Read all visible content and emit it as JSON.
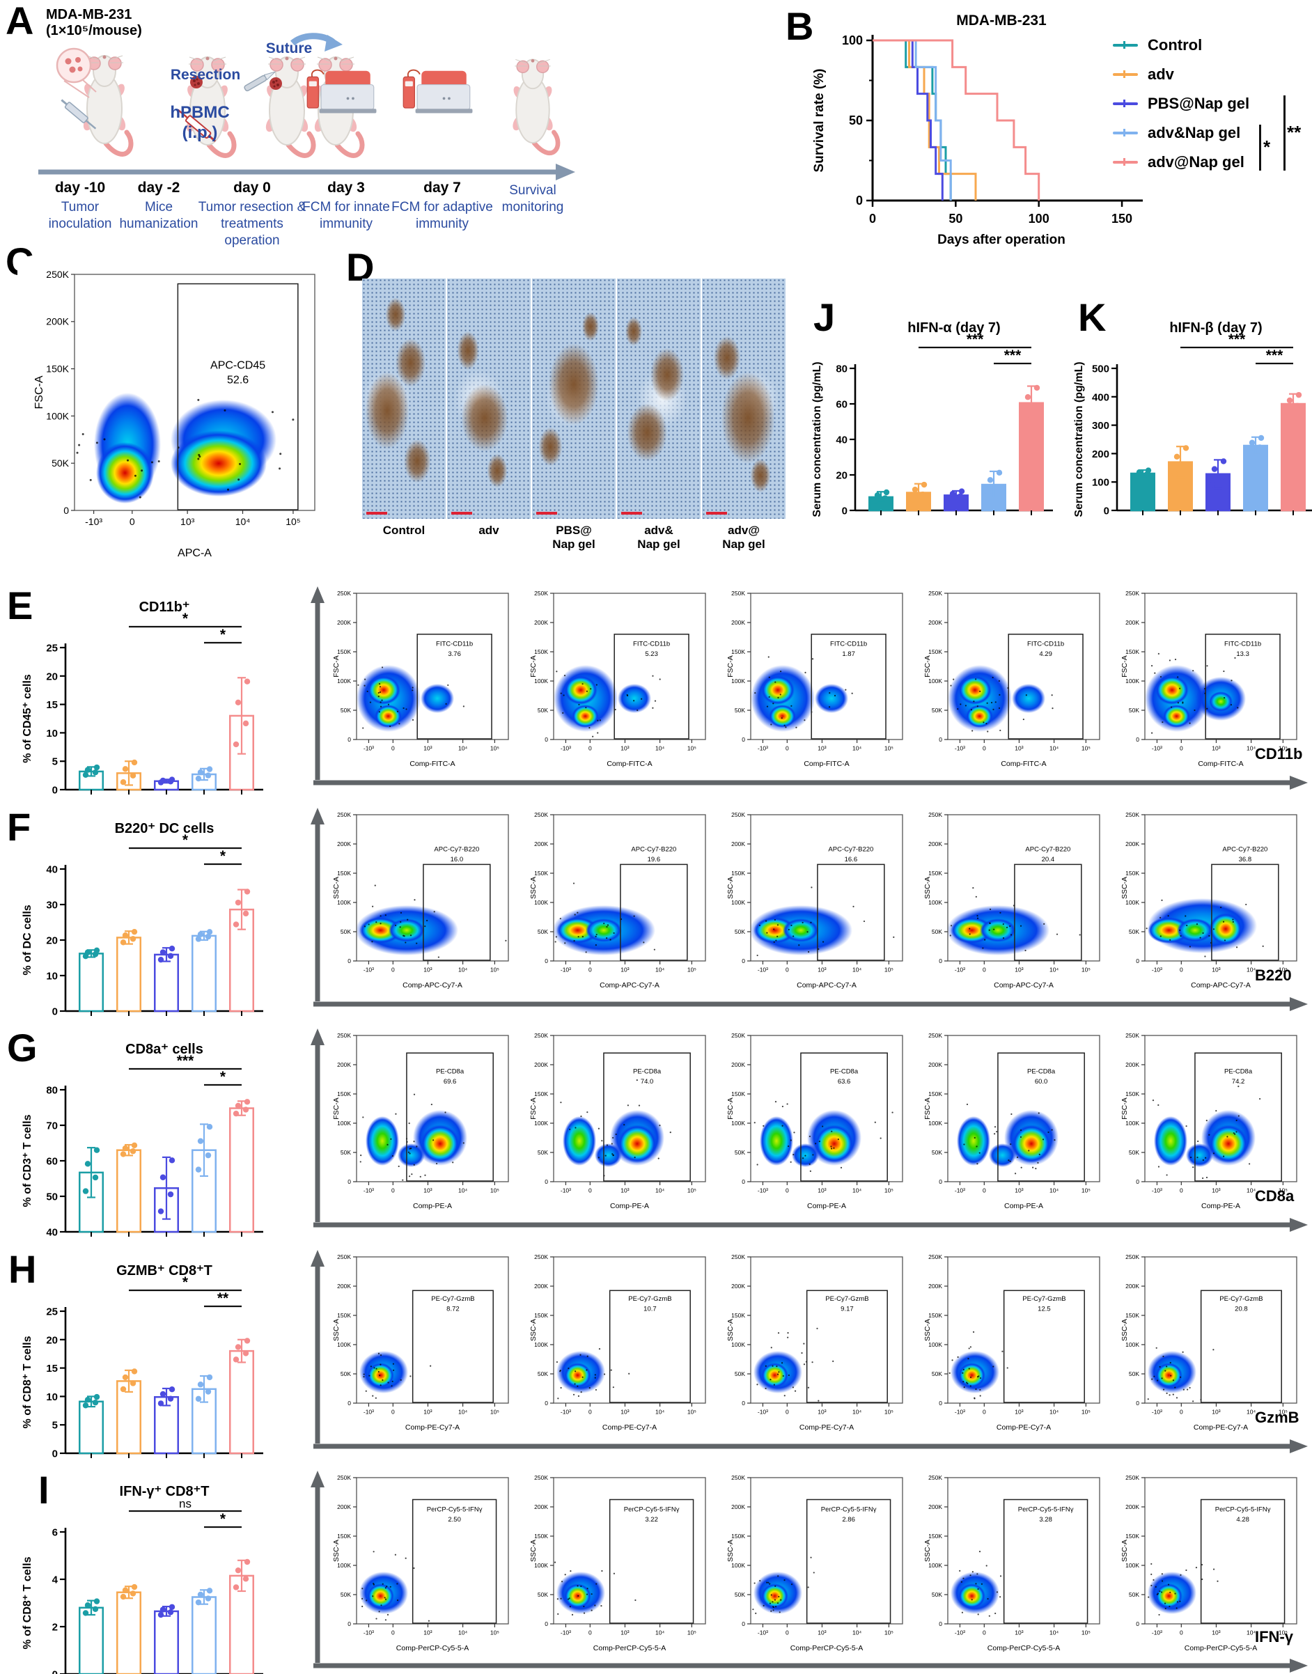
{
  "groups": [
    "Control",
    "adv",
    "PBS@Nap gel",
    "adv&Nap gel",
    "adv@Nap gel"
  ],
  "group_colors": [
    "#1B9EA6",
    "#F7A84F",
    "#4B4BE0",
    "#7FB2EF",
    "#F48C8C"
  ],
  "panel_letters": {
    "A": "A",
    "B": "B",
    "C": "C",
    "D": "D",
    "E": "E",
    "F": "F",
    "G": "G",
    "H": "H",
    "I": "I",
    "J": "J",
    "K": "K"
  },
  "panelA": {
    "cell_line": "MDA-MB-231",
    "dose": "(1×10⁵/mouse)",
    "resection": "Resection",
    "suture": "Suture",
    "hpbmc": "hPBMC\n(i.p.)",
    "timeline": [
      {
        "day": "day -10",
        "desc": "Tumor\ninoculation"
      },
      {
        "day": "day -2",
        "desc": "Mice\nhumanization"
      },
      {
        "day": "day 0",
        "desc": "Tumor resection &\ntreatments operation"
      },
      {
        "day": "day 3",
        "desc": "FCM for innate\nimmunity"
      },
      {
        "day": "day 7",
        "desc": "FCM for adaptive\nimmunity"
      },
      {
        "day": "",
        "desc": "Survival\nmonitoring"
      }
    ]
  },
  "panelB": {
    "sig": [
      {
        "text": "*",
        "from_row": 3,
        "to_row": 4
      },
      {
        "text": "**",
        "from_row": 2,
        "to_row": 4
      }
    ]
  },
  "panelC": {
    "ylabel": "FSC-A",
    "xlabel": "APC-A",
    "gate_name": "APC-CD45",
    "gate_value": "52.6"
  },
  "panelD": {
    "labels": [
      "Control",
      "adv",
      "PBS@\nNap gel",
      "adv&\nNap gel",
      "adv@\nNap gel"
    ]
  },
  "fcm": {
    "yticks": [
      "0",
      "50K",
      "100K",
      "150K",
      "200K",
      "250K"
    ],
    "xticks": [
      "-10³",
      "0",
      "10³",
      "10⁴",
      "10⁵"
    ],
    "rows": [
      {
        "id": "E",
        "ylabel": "FSC-A",
        "xlabel": "Comp-FITC-A",
        "gate_name": "FITC-CD11b",
        "gate_values": [
          "3.76",
          "5.23",
          "1.87",
          "4.29",
          "13.3"
        ],
        "marker": "CD11b",
        "blob": "cd11b"
      },
      {
        "id": "F",
        "ylabel": "SSC-A",
        "xlabel": "Comp-APC-Cy7-A",
        "gate_name": "APC-Cy7-B220",
        "gate_values": [
          "16.0",
          "19.6",
          "16.6",
          "20.4",
          "36.8"
        ],
        "marker": "B220",
        "blob": "band"
      },
      {
        "id": "G",
        "ylabel": "FSC-A",
        "xlabel": "Comp-PE-A",
        "gate_name": "PE-CD8a",
        "gate_values": [
          "69.6",
          "74.0",
          "63.6",
          "60.0",
          "74.2"
        ],
        "marker": "CD8a",
        "blob": "two"
      },
      {
        "id": "H",
        "ylabel": "SSC-A",
        "xlabel": "Comp-PE-Cy7-A",
        "gate_name": "PE-Cy7-GzmB",
        "gate_values": [
          "8.72",
          "10.7",
          "9.17",
          "12.5",
          "20.8"
        ],
        "marker": "GzmB",
        "blob": "single"
      },
      {
        "id": "I",
        "ylabel": "SSC-A",
        "xlabel": "Comp-PerCP-Cy5-5-A",
        "gate_name": "PerCP-Cy5-5-IFNγ",
        "gate_values": [
          "2.50",
          "3.22",
          "2.86",
          "3.28",
          "4.28"
        ],
        "marker": "IFN-γ",
        "blob": "single"
      }
    ]
  },
  "chart_data": [
    {
      "id": "B",
      "type": "line",
      "title": "MDA-MB-231",
      "xlabel": "Days after operation",
      "ylabel": "Survival rate (%)",
      "xlim": [
        0,
        155
      ],
      "ylim": [
        0,
        100
      ],
      "xticks": [
        0,
        50,
        100,
        150
      ],
      "yticks": [
        0,
        50,
        100
      ],
      "legend_position": "right",
      "series": [
        {
          "name": "Control",
          "color": "#1B9EA6",
          "points": [
            [
              0,
              100
            ],
            [
              20,
              100
            ],
            [
              20,
              83.3
            ],
            [
              36,
              83.3
            ],
            [
              36,
              66.7
            ],
            [
              38,
              66.7
            ],
            [
              38,
              50
            ],
            [
              41,
              50
            ],
            [
              41,
              33.3
            ],
            [
              44,
              33.3
            ],
            [
              44,
              16.7
            ],
            [
              47,
              16.7
            ],
            [
              47,
              0
            ]
          ]
        },
        {
          "name": "adv",
          "color": "#F7A84F",
          "points": [
            [
              0,
              100
            ],
            [
              22,
              100
            ],
            [
              22,
              83.3
            ],
            [
              31,
              83.3
            ],
            [
              31,
              66.7
            ],
            [
              34,
              66.7
            ],
            [
              34,
              33.3
            ],
            [
              40,
              33.3
            ],
            [
              40,
              16.7
            ],
            [
              62,
              16.7
            ],
            [
              62,
              0
            ]
          ]
        },
        {
          "name": "PBS@Nap gel",
          "color": "#4B4BE0",
          "points": [
            [
              0,
              100
            ],
            [
              24,
              100
            ],
            [
              24,
              83.3
            ],
            [
              27,
              83.3
            ],
            [
              27,
              66.7
            ],
            [
              33,
              66.7
            ],
            [
              33,
              50
            ],
            [
              35,
              50
            ],
            [
              35,
              33.3
            ],
            [
              38,
              33.3
            ],
            [
              38,
              16.7
            ],
            [
              42,
              16.7
            ],
            [
              42,
              0
            ]
          ]
        },
        {
          "name": "adv&Nap gel",
          "color": "#7FB2EF",
          "points": [
            [
              0,
              100
            ],
            [
              26,
              100
            ],
            [
              26,
              83.3
            ],
            [
              38,
              83.3
            ],
            [
              38,
              50
            ],
            [
              41,
              50
            ],
            [
              41,
              25
            ],
            [
              47,
              25
            ],
            [
              47,
              0
            ]
          ]
        },
        {
          "name": "adv@Nap gel",
          "color": "#F48C8C",
          "points": [
            [
              0,
              100
            ],
            [
              48,
              100
            ],
            [
              48,
              83.3
            ],
            [
              56,
              83.3
            ],
            [
              56,
              66.7
            ],
            [
              75,
              66.7
            ],
            [
              75,
              50
            ],
            [
              85,
              50
            ],
            [
              85,
              33.3
            ],
            [
              92,
              33.3
            ],
            [
              92,
              16.7
            ],
            [
              100,
              16.7
            ],
            [
              100,
              0
            ]
          ]
        }
      ]
    },
    {
      "id": "E",
      "type": "bar",
      "title": "CD11b⁺",
      "ylabel": "% of CD45⁺ cells",
      "categories": [
        "Control",
        "adv",
        "PBS@Nap gel",
        "adv&Nap gel",
        "adv@Nap gel"
      ],
      "values": [
        3.2,
        2.9,
        1.5,
        2.7,
        13.0
      ],
      "errors": [
        0.8,
        2.1,
        0.3,
        1.0,
        6.7
      ],
      "ylim": [
        0,
        25
      ],
      "yticks": [
        0,
        5,
        10,
        15,
        20,
        25
      ],
      "filled": false,
      "sig": [
        {
          "from": 1,
          "to": 4,
          "text": "*"
        },
        {
          "from": 3,
          "to": 4,
          "text": "*"
        }
      ]
    },
    {
      "id": "F",
      "type": "bar",
      "title": "B220⁺ DC cells",
      "ylabel": "% of DC cells",
      "categories": [
        "Control",
        "adv",
        "PBS@Nap gel",
        "adv&Nap gel",
        "adv@Nap gel"
      ],
      "values": [
        16.2,
        20.7,
        15.9,
        21.2,
        28.6
      ],
      "errors": [
        1.0,
        1.8,
        1.9,
        1.2,
        5.6
      ],
      "ylim": [
        0,
        40
      ],
      "yticks": [
        0,
        10,
        20,
        30,
        40
      ],
      "filled": false,
      "sig": [
        {
          "from": 1,
          "to": 4,
          "text": "*"
        },
        {
          "from": 3,
          "to": 4,
          "text": "*"
        }
      ]
    },
    {
      "id": "G",
      "type": "bar",
      "title": "CD8a⁺ cells",
      "ylabel": "% of CD3⁺ T cells",
      "categories": [
        "Control",
        "adv",
        "PBS@Nap gel",
        "adv&Nap gel",
        "adv@Nap gel"
      ],
      "values": [
        56.7,
        63.0,
        52.3,
        63.0,
        74.8
      ],
      "errors": [
        7.0,
        1.5,
        8.7,
        7.3,
        2.0
      ],
      "ylim": [
        40,
        80
      ],
      "yticks": [
        40,
        50,
        60,
        70,
        80
      ],
      "filled": false,
      "sig": [
        {
          "from": 1,
          "to": 4,
          "text": "***"
        },
        {
          "from": 3,
          "to": 4,
          "text": "*"
        }
      ]
    },
    {
      "id": "H",
      "type": "bar",
      "title": "GZMB⁺ CD8⁺T",
      "ylabel": "% of CD8⁺ T cells",
      "categories": [
        "Control",
        "adv",
        "PBS@Nap gel",
        "adv&Nap gel",
        "adv@Nap gel"
      ],
      "values": [
        9.1,
        12.7,
        9.9,
        11.3,
        18.0
      ],
      "errors": [
        0.9,
        1.9,
        1.5,
        2.3,
        2.0
      ],
      "ylim": [
        0,
        25
      ],
      "yticks": [
        0,
        5,
        10,
        15,
        20,
        25
      ],
      "filled": false,
      "sig": [
        {
          "from": 1,
          "to": 4,
          "text": "*"
        },
        {
          "from": 3,
          "to": 4,
          "text": "**"
        }
      ]
    },
    {
      "id": "I",
      "type": "bar",
      "title": "IFN-γ⁺ CD8⁺T",
      "ylabel": "% of CD8⁺ T cells",
      "categories": [
        "Control",
        "adv",
        "PBS@Nap gel",
        "adv&Nap gel",
        "adv@Nap gel"
      ],
      "values": [
        2.8,
        3.45,
        2.65,
        3.25,
        4.15
      ],
      "errors": [
        0.3,
        0.25,
        0.2,
        0.3,
        0.65
      ],
      "ylim": [
        0,
        6
      ],
      "yticks": [
        0,
        2,
        4,
        6
      ],
      "filled": false,
      "sig": [
        {
          "from": 1,
          "to": 4,
          "text": "ns"
        },
        {
          "from": 3,
          "to": 4,
          "text": "*"
        }
      ]
    },
    {
      "id": "J",
      "type": "bar",
      "title": "hIFN-α (day 7)",
      "ylabel": "Serum concentration (pg/mL)",
      "categories": [
        "Control",
        "adv",
        "PBS@Nap gel",
        "adv&Nap gel",
        "adv@Nap gel"
      ],
      "values": [
        7.5,
        10,
        8.5,
        14.5,
        60.5
      ],
      "errors": [
        3,
        5,
        2.5,
        7.5,
        9.5
      ],
      "ylim": [
        0,
        80
      ],
      "yticks": [
        0,
        20,
        40,
        60,
        80
      ],
      "filled": true,
      "sig": [
        {
          "from": 1,
          "to": 4,
          "text": "***"
        },
        {
          "from": 3,
          "to": 4,
          "text": "***"
        }
      ]
    },
    {
      "id": "K",
      "type": "bar",
      "title": "hIFN-β (day 7)",
      "ylabel": "Serum concentration (pg/mL)",
      "categories": [
        "Control",
        "adv",
        "PBS@Nap gel",
        "adv&Nap gel",
        "adv@Nap gel"
      ],
      "values": [
        130,
        170,
        128,
        228,
        375
      ],
      "errors": [
        12,
        55,
        50,
        30,
        35
      ],
      "ylim": [
        0,
        500
      ],
      "yticks": [
        0,
        100,
        200,
        300,
        400,
        500
      ],
      "filled": true,
      "sig": [
        {
          "from": 1,
          "to": 4,
          "text": "***"
        },
        {
          "from": 3,
          "to": 4,
          "text": "***"
        }
      ]
    }
  ]
}
